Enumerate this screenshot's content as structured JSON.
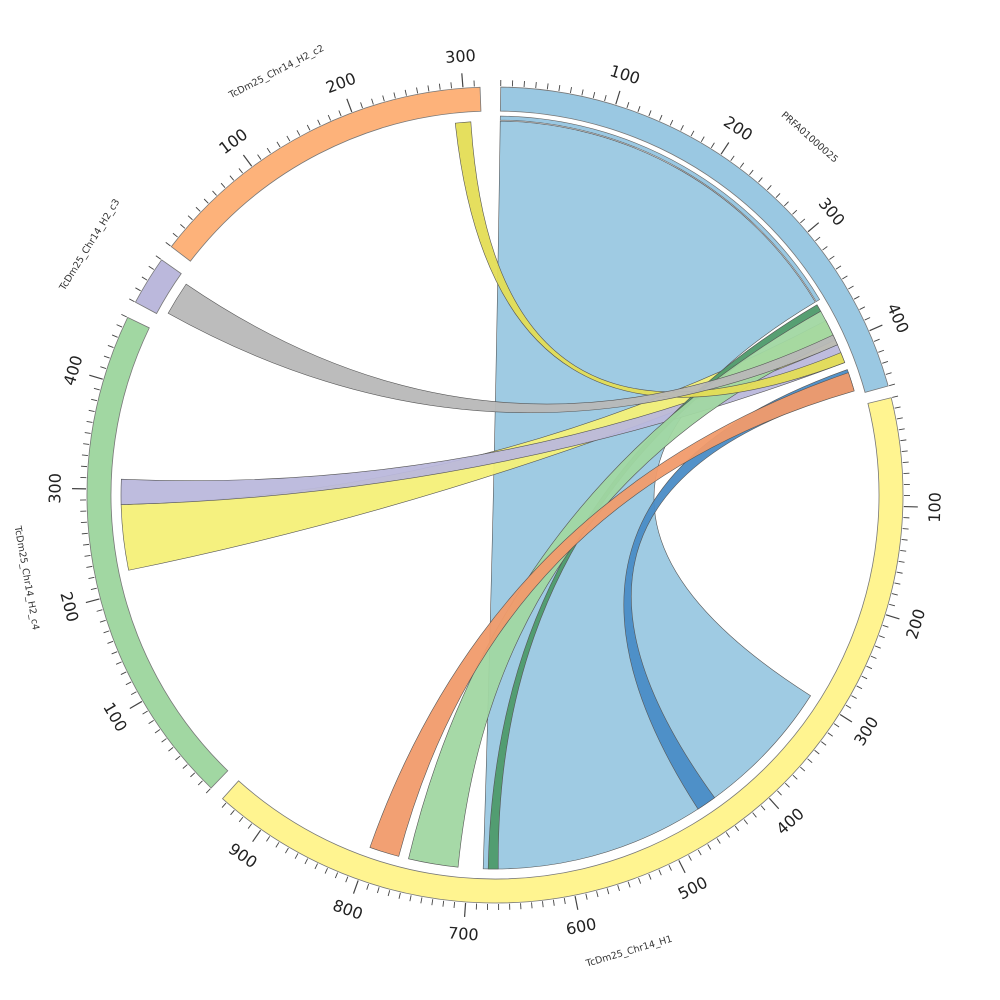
{
  "chart_data": {
    "type": "chord",
    "tick_step_minor": 10,
    "tick_step_major": 100,
    "contigs": [
      {
        "id": "prfa",
        "name": "PRFA01000025",
        "length": 450,
        "color": "#9ac8e2",
        "start_deg": 0.8,
        "end_deg": 74.5
      },
      {
        "id": "h1",
        "name": "TcDm25_Chr14_H1",
        "length": 945,
        "color": "#fff490",
        "start_deg": 76.2,
        "end_deg": 221.9
      },
      {
        "id": "c4",
        "name": "TcDm25_Chr14_H2_c4",
        "length": 460,
        "color": "#a1d7a2",
        "start_deg": 224.1,
        "end_deg": 295.8
      },
      {
        "id": "c3",
        "name": "TcDm25_Chr14_H2_c3",
        "length": 40,
        "color": "#bbb8dc",
        "start_deg": 298.2,
        "end_deg": 305.2
      },
      {
        "id": "c2",
        "name": "TcDm25_Chr14_H2_c2",
        "length": 315,
        "color": "#fdb27a",
        "start_deg": 307.5,
        "end_deg": 357.9
      }
    ],
    "links": [
      {
        "from": "prfa",
        "from_range": [
          0,
          355
        ],
        "to": "h1",
        "to_range": [
          300,
          685
        ],
        "color": "#9ac8e2"
      },
      {
        "from": "prfa",
        "from_range": [
          425,
          445
        ],
        "to": "h1",
        "to_range": [
          440,
          460
        ],
        "color": "#4a8cc6"
      },
      {
        "from": "prfa",
        "from_range": [
          375,
          400
        ],
        "to": "c4",
        "to_range": [
          220,
          285
        ],
        "color": "#f4f078"
      },
      {
        "from": "prfa",
        "from_range": [
          400,
          418
        ],
        "to": "c4",
        "to_range": [
          285,
          310
        ],
        "color": "#bbb8dc"
      },
      {
        "from": "prfa",
        "from_range": [
          358,
          365
        ],
        "to": "h1",
        "to_range": [
          670,
          680
        ],
        "color": "#4e9a6a"
      },
      {
        "from": "prfa",
        "from_range": [
          365,
          395
        ],
        "to": "h1",
        "to_range": [
          710,
          760
        ],
        "color": "#a1d7a2"
      },
      {
        "from": "prfa",
        "from_range": [
          428,
          446
        ],
        "to": "h1",
        "to_range": [
          770,
          800
        ],
        "color": "#f19b6c"
      },
      {
        "from": "prfa",
        "from_range": [
          408,
          418
        ],
        "to": "c2",
        "to_range": [
          290,
          305
        ],
        "color": "#e4dd55"
      },
      {
        "from": "prfa",
        "from_range": [
          390,
          400
        ],
        "to": "c3",
        "to_range": [
          5,
          35
        ],
        "color": "#b8b8b8"
      }
    ]
  }
}
